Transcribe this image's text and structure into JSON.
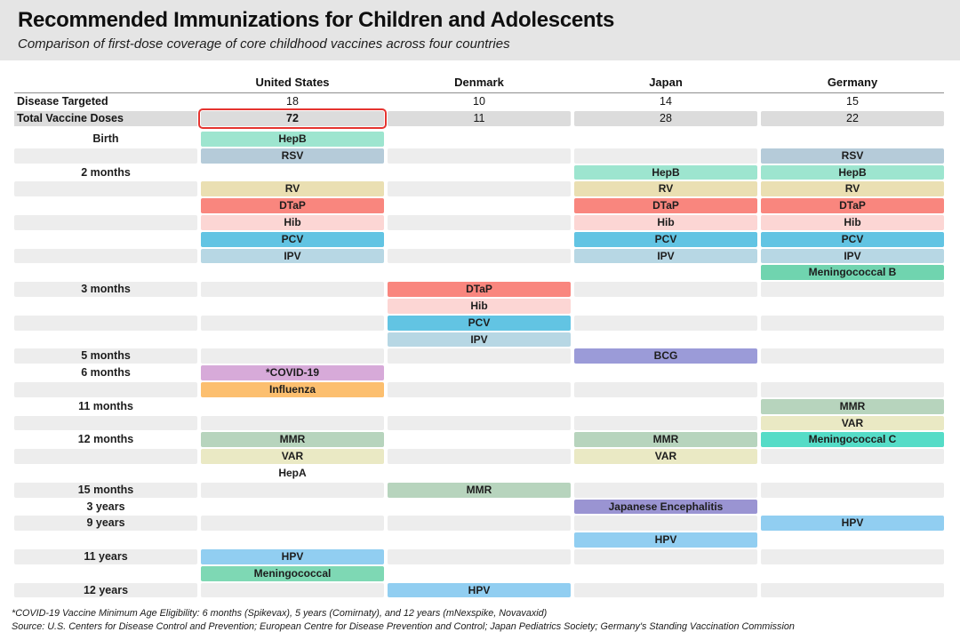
{
  "title": "Recommended Immunizations for Children and Adolescents",
  "subtitle": "Comparison of first-dose coverage of core childhood vaccines across four countries",
  "chart_data": {
    "type": "table",
    "columns": [
      "United States",
      "Denmark",
      "Japan",
      "Germany"
    ],
    "stat_rows": [
      {
        "label": "Disease Targeted",
        "values": [
          "18",
          "10",
          "14",
          "15"
        ],
        "highlight_col": null
      },
      {
        "label": "Total Vaccine Doses",
        "values": [
          "72",
          "11",
          "28",
          "22"
        ],
        "highlight_col": 0
      }
    ],
    "highlight_color": "#e53430",
    "palette": {
      "hepb": "#9de5cf",
      "rsv": "#b5cbd9",
      "rv": "#eadfb2",
      "dtap": "#f9867e",
      "hib": "#fcd6d4",
      "pcv": "#62c4e3",
      "ipv": "#b7d7e4",
      "mening_b": "#70d4af",
      "covid": "#d7aad9",
      "influenza": "#fcbf6f",
      "mmr": "#b7d4bd",
      "var": "#eae9c4",
      "mening_c": "#55dcc7",
      "hpv": "#91cef1",
      "bcg": "#9b9bd8",
      "je": "#9a94d2",
      "mening": "#7ed8b4"
    },
    "schedule_rows": [
      {
        "label": "Birth",
        "cells": [
          {
            "text": "HepB",
            "color": "hepb"
          },
          null,
          null,
          null
        ]
      },
      {
        "label": "",
        "cells": [
          {
            "text": "RSV",
            "color": "rsv"
          },
          null,
          null,
          {
            "text": "RSV",
            "color": "rsv"
          }
        ]
      },
      {
        "label": "2 months",
        "cells": [
          null,
          null,
          {
            "text": "HepB",
            "color": "hepb"
          },
          {
            "text": "HepB",
            "color": "hepb"
          }
        ]
      },
      {
        "label": "",
        "cells": [
          {
            "text": "RV",
            "color": "rv"
          },
          null,
          {
            "text": "RV",
            "color": "rv"
          },
          {
            "text": "RV",
            "color": "rv"
          }
        ]
      },
      {
        "label": "",
        "cells": [
          {
            "text": "DTaP",
            "color": "dtap"
          },
          null,
          {
            "text": "DTaP",
            "color": "dtap"
          },
          {
            "text": "DTaP",
            "color": "dtap"
          }
        ]
      },
      {
        "label": "",
        "cells": [
          {
            "text": "Hib",
            "color": "hib"
          },
          null,
          {
            "text": "Hib",
            "color": "hib"
          },
          {
            "text": "Hib",
            "color": "hib"
          }
        ]
      },
      {
        "label": "",
        "cells": [
          {
            "text": "PCV",
            "color": "pcv"
          },
          null,
          {
            "text": "PCV",
            "color": "pcv"
          },
          {
            "text": "PCV",
            "color": "pcv"
          }
        ]
      },
      {
        "label": "",
        "cells": [
          {
            "text": "IPV",
            "color": "ipv"
          },
          null,
          {
            "text": "IPV",
            "color": "ipv"
          },
          {
            "text": "IPV",
            "color": "ipv"
          }
        ]
      },
      {
        "label": "",
        "cells": [
          null,
          null,
          null,
          {
            "text": "Meningococcal B",
            "color": "mening_b"
          }
        ]
      },
      {
        "label": "3 months",
        "cells": [
          null,
          {
            "text": "DTaP",
            "color": "dtap"
          },
          null,
          null
        ]
      },
      {
        "label": "",
        "cells": [
          null,
          {
            "text": "Hib",
            "color": "hib"
          },
          null,
          null
        ]
      },
      {
        "label": "",
        "cells": [
          null,
          {
            "text": "PCV",
            "color": "pcv"
          },
          null,
          null
        ]
      },
      {
        "label": "",
        "cells": [
          null,
          {
            "text": "IPV",
            "color": "ipv"
          },
          null,
          null
        ]
      },
      {
        "label": "5 months",
        "cells": [
          null,
          null,
          {
            "text": "BCG",
            "color": "bcg"
          },
          null
        ]
      },
      {
        "label": "6 months",
        "cells": [
          {
            "text": "*COVID-19",
            "color": "covid"
          },
          null,
          null,
          null
        ]
      },
      {
        "label": "",
        "cells": [
          {
            "text": "Influenza",
            "color": "influenza"
          },
          null,
          null,
          null
        ]
      },
      {
        "label": "11 months",
        "cells": [
          null,
          null,
          null,
          {
            "text": "MMR",
            "color": "mmr"
          }
        ]
      },
      {
        "label": "",
        "cells": [
          null,
          null,
          null,
          {
            "text": "VAR",
            "color": "var"
          }
        ]
      },
      {
        "label": "12 months",
        "cells": [
          {
            "text": "MMR",
            "color": "mmr"
          },
          null,
          {
            "text": "MMR",
            "color": "mmr"
          },
          {
            "text": "Meningococcal C",
            "color": "mening_c"
          }
        ]
      },
      {
        "label": "",
        "cells": [
          {
            "text": "VAR",
            "color": "var"
          },
          null,
          {
            "text": "VAR",
            "color": "var"
          },
          null
        ]
      },
      {
        "label": "",
        "cells": [
          {
            "text": "HepA",
            "color": null
          },
          null,
          null,
          null
        ]
      },
      {
        "label": "15 months",
        "cells": [
          null,
          {
            "text": "MMR",
            "color": "mmr"
          },
          null,
          null
        ]
      },
      {
        "label": "3 years",
        "cells": [
          null,
          null,
          {
            "text": "Japanese Encephalitis",
            "color": "je"
          },
          null
        ]
      },
      {
        "label": "9 years",
        "cells": [
          null,
          null,
          null,
          {
            "text": "HPV",
            "color": "hpv"
          }
        ]
      },
      {
        "label": "",
        "cells": [
          null,
          null,
          {
            "text": "HPV",
            "color": "hpv"
          },
          null
        ]
      },
      {
        "label": "11 years",
        "cells": [
          {
            "text": "HPV",
            "color": "hpv"
          },
          null,
          null,
          null
        ]
      },
      {
        "label": "",
        "cells": [
          {
            "text": "Meningococcal",
            "color": "mening"
          },
          null,
          null,
          null
        ]
      },
      {
        "label": "12 years",
        "cells": [
          null,
          {
            "text": "HPV",
            "color": "hpv"
          },
          null,
          null
        ]
      }
    ]
  },
  "footnotes": [
    "*COVID-19 Vaccine Minimum Age Eligibility: 6 months (Spikevax), 5 years (Comirnaty), and 12 years (mNexspike, Novavaxid)",
    "Source: U.S. Centers for Disease Control and Prevention; European Centre for Disease Prevention and Control; Japan Pediatrics Society; Germany's Standing Vaccination Commission"
  ]
}
